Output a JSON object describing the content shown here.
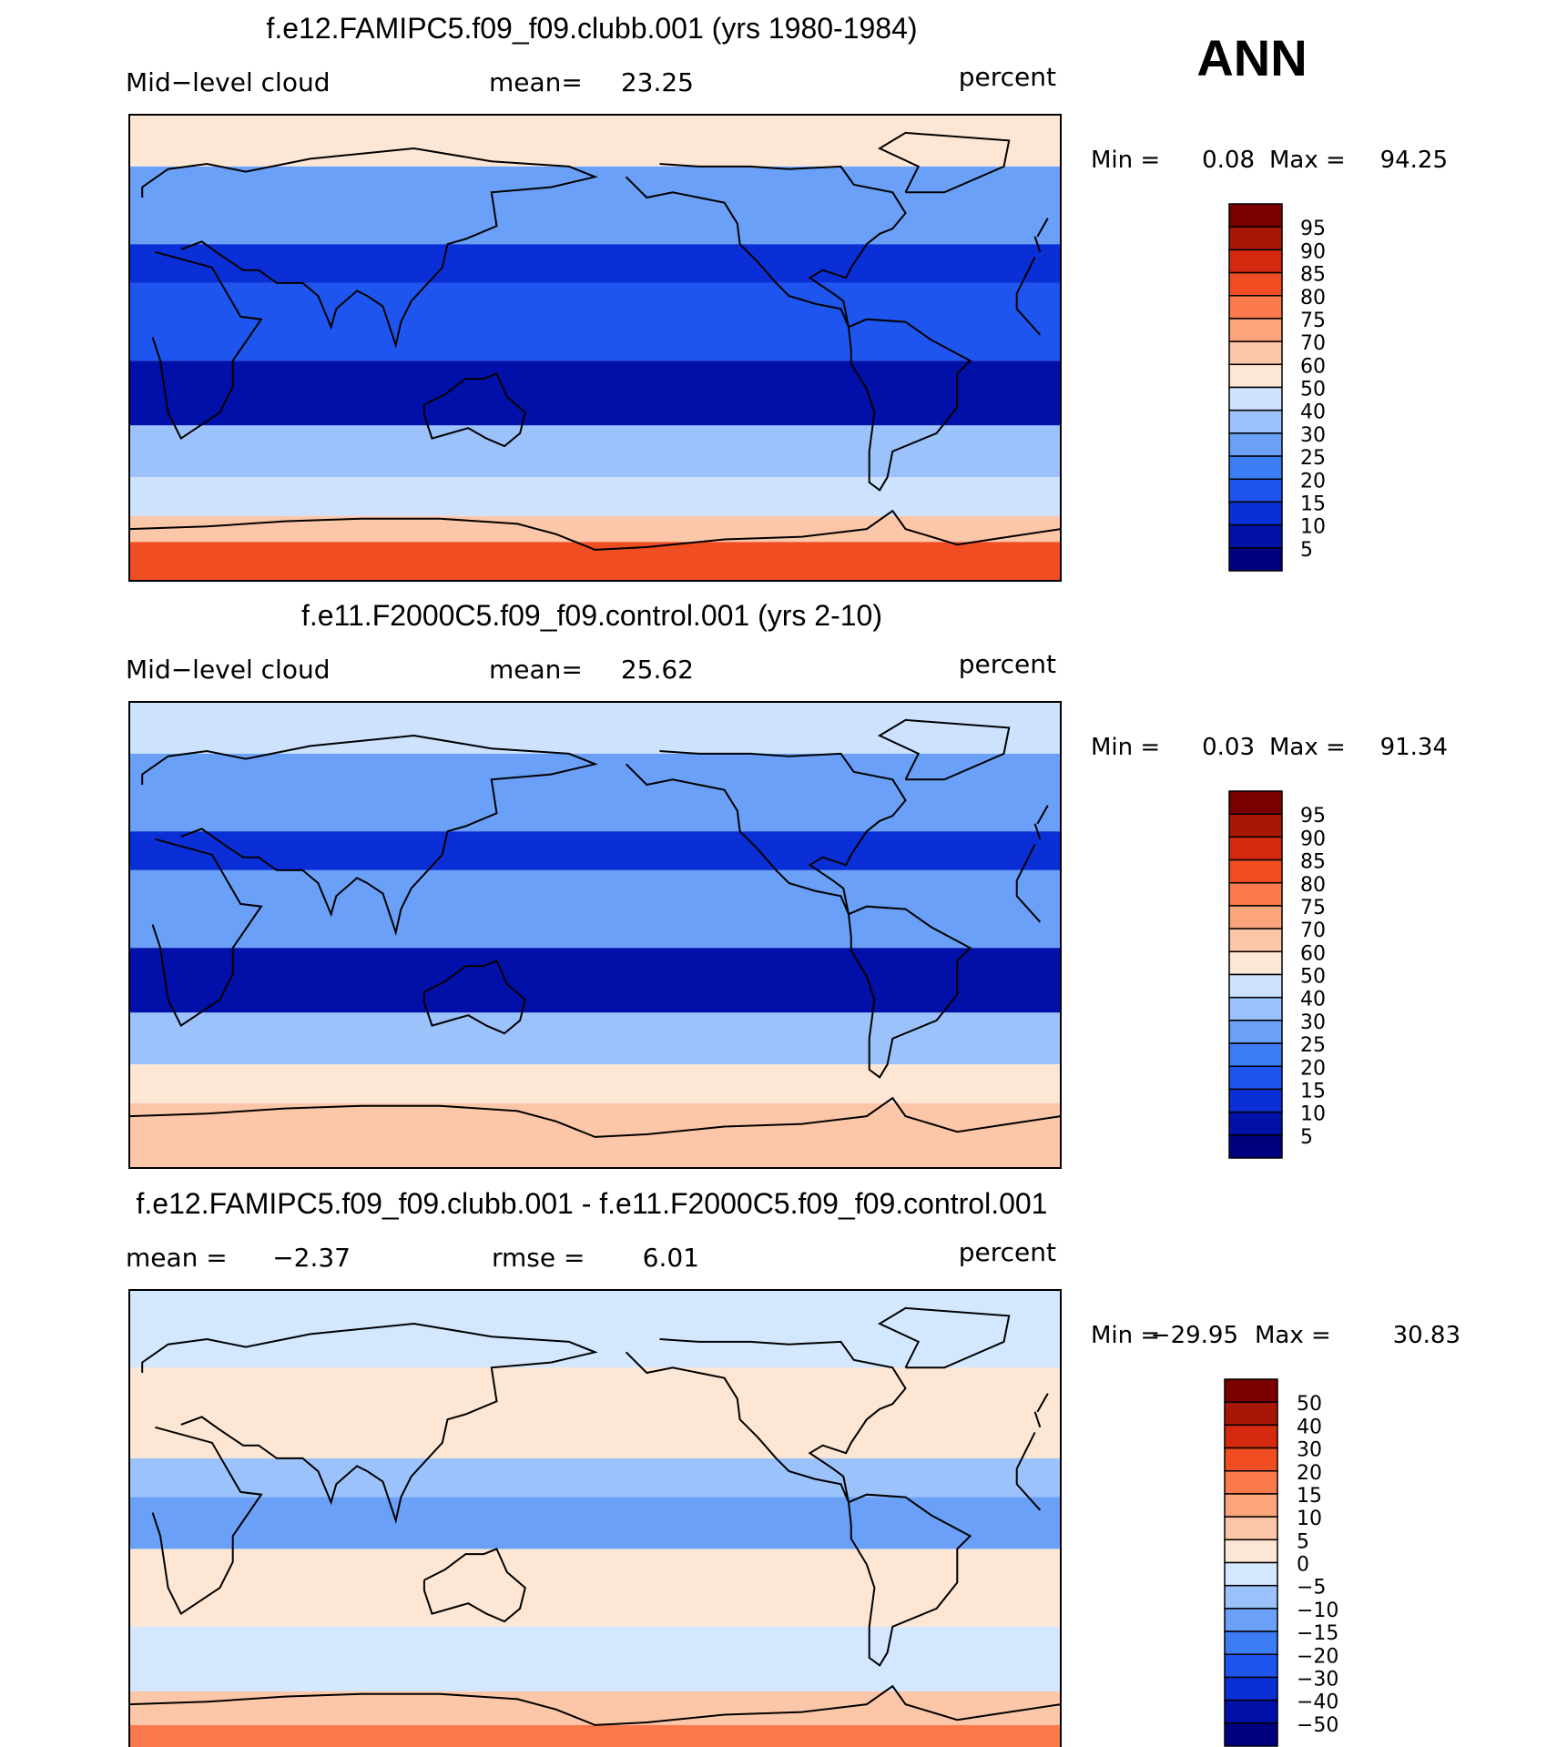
{
  "season_label": "ANN",
  "palette": {
    "abs": [
      "#00007f",
      "#0010a8",
      "#0a2fd6",
      "#1e55ee",
      "#3c7cf5",
      "#6aa0f8",
      "#9cc2fb",
      "#cce2fd",
      "#fde6d4",
      "#fcc6a8",
      "#fca47c",
      "#fa7a4c",
      "#f04e22",
      "#d62a10",
      "#a81606",
      "#7a0000"
    ],
    "diff": [
      "#00007f",
      "#0010a8",
      "#0a2fd6",
      "#1e55ee",
      "#3c7cf5",
      "#6aa0f8",
      "#9cc2fb",
      "#d3e7fe",
      "#fde6d4",
      "#fcc6a8",
      "#fca47c",
      "#fa7a4c",
      "#f04e22",
      "#d62a10",
      "#a81606",
      "#7a0000"
    ]
  },
  "chart_data": [
    {
      "type": "heatmap",
      "title": "f.e12.FAMIPC5.f09_f09.clubb.001 (yrs 1980-1984)",
      "left_label": "Mid−level cloud",
      "center_label": "mean=",
      "center_value": "23.25",
      "units": "percent",
      "min_label": "Min =",
      "min_value": "0.08",
      "max_label": "Max =",
      "max_value": "94.25",
      "colorbar_levels": [
        "95",
        "90",
        "85",
        "80",
        "75",
        "70",
        "60",
        "50",
        "40",
        "30",
        "25",
        "20",
        "15",
        "10",
        "5"
      ],
      "bands": [
        {
          "lat_range": [
            70,
            90
          ],
          "level": 8
        },
        {
          "lat_range": [
            40,
            70
          ],
          "level": 5
        },
        {
          "lat_range": [
            25,
            40
          ],
          "level": 2
        },
        {
          "lat_range": [
            -5,
            25
          ],
          "level": 3
        },
        {
          "lat_range": [
            -30,
            -5
          ],
          "level": 1
        },
        {
          "lat_range": [
            -50,
            -30
          ],
          "level": 6
        },
        {
          "lat_range": [
            -65,
            -50
          ],
          "level": 7
        },
        {
          "lat_range": [
            -75,
            -65
          ],
          "level": 9
        },
        {
          "lat_range": [
            -90,
            -75
          ],
          "level": 12
        }
      ]
    },
    {
      "type": "heatmap",
      "title": "f.e11.F2000C5.f09_f09.control.001 (yrs 2-10)",
      "left_label": "Mid−level cloud",
      "center_label": "mean=",
      "center_value": "25.62",
      "units": "percent",
      "min_label": "Min =",
      "min_value": "0.03",
      "max_label": "Max =",
      "max_value": "91.34",
      "colorbar_levels": [
        "95",
        "90",
        "85",
        "80",
        "75",
        "70",
        "60",
        "50",
        "40",
        "30",
        "25",
        "20",
        "15",
        "10",
        "5"
      ],
      "bands": [
        {
          "lat_range": [
            70,
            90
          ],
          "level": 7
        },
        {
          "lat_range": [
            40,
            70
          ],
          "level": 5
        },
        {
          "lat_range": [
            25,
            40
          ],
          "level": 2
        },
        {
          "lat_range": [
            -5,
            25
          ],
          "level": 5
        },
        {
          "lat_range": [
            -30,
            -5
          ],
          "level": 1
        },
        {
          "lat_range": [
            -50,
            -30
          ],
          "level": 6
        },
        {
          "lat_range": [
            -65,
            -50
          ],
          "level": 8
        },
        {
          "lat_range": [
            -90,
            -65
          ],
          "level": 9
        }
      ]
    },
    {
      "type": "heatmap",
      "title": "f.e12.FAMIPC5.f09_f09.clubb.001 - f.e11.F2000C5.f09_f09.control.001",
      "left_label": "mean =",
      "left_value": "−2.37",
      "center_label": "rmse =",
      "center_value": "6.01",
      "units": "percent",
      "min_label": "Min =",
      "min_value": "−29.95",
      "max_label": "Max =",
      "max_value": "30.83",
      "colorbar_levels": [
        "50",
        "40",
        "30",
        "20",
        "15",
        "10",
        "5",
        "0",
        "−5",
        "−10",
        "−15",
        "−20",
        "−30",
        "−40",
        "−50"
      ],
      "bands": [
        {
          "lat_range": [
            60,
            90
          ],
          "level": 7
        },
        {
          "lat_range": [
            25,
            60
          ],
          "level": 8
        },
        {
          "lat_range": [
            10,
            25
          ],
          "level": 6
        },
        {
          "lat_range": [
            -10,
            10
          ],
          "level": 5
        },
        {
          "lat_range": [
            -40,
            -10
          ],
          "level": 8
        },
        {
          "lat_range": [
            -65,
            -40
          ],
          "level": 7
        },
        {
          "lat_range": [
            -78,
            -65
          ],
          "level": 9
        },
        {
          "lat_range": [
            -90,
            -78
          ],
          "level": 11
        }
      ]
    }
  ]
}
